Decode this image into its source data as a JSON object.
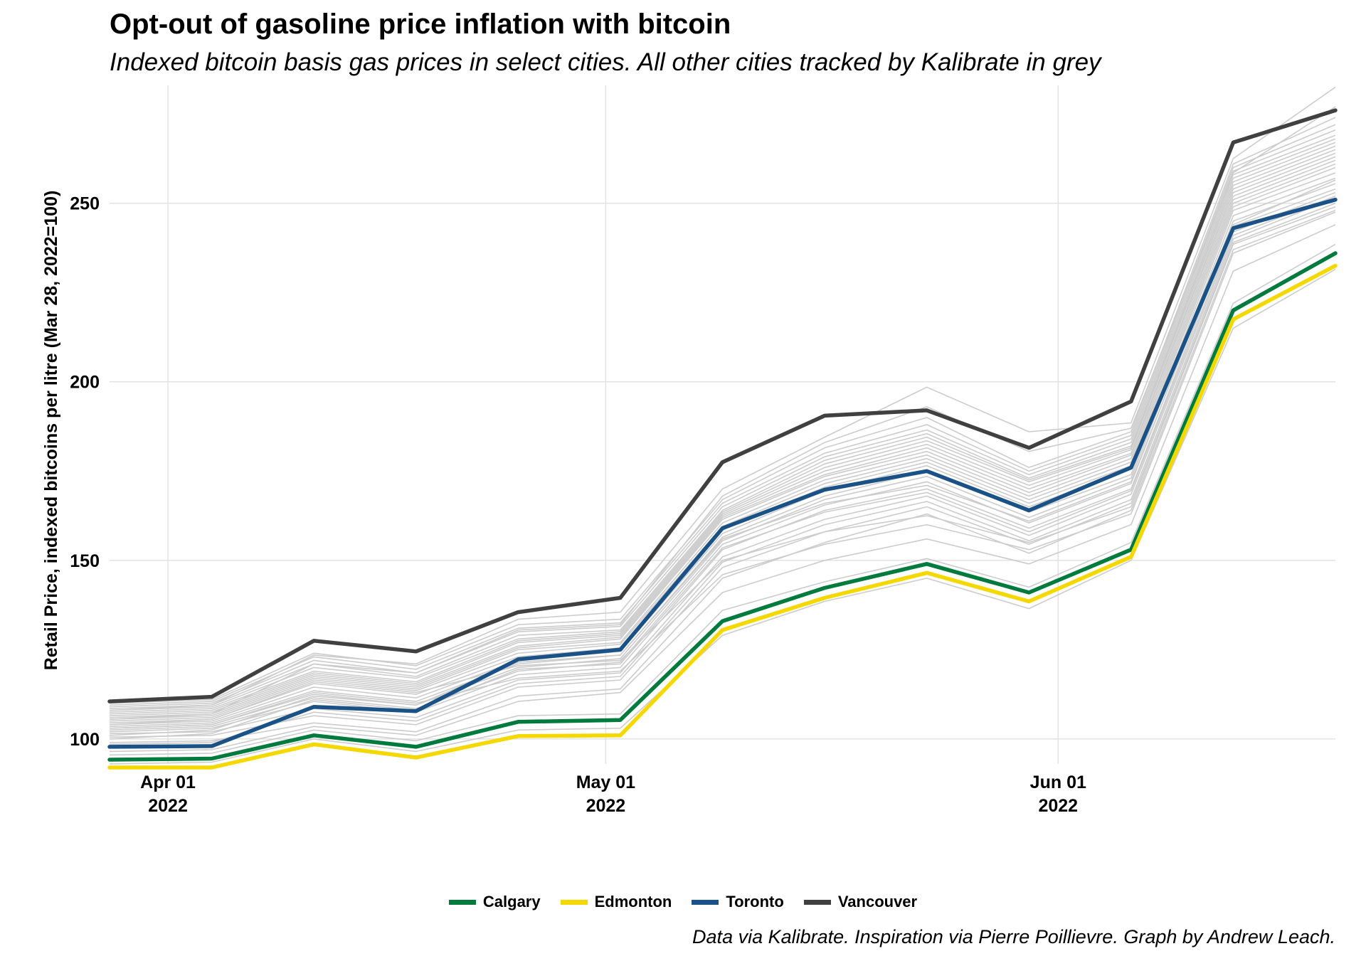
{
  "chart_data": {
    "type": "line",
    "title": "Opt-out of gasoline price inflation with bitcoin",
    "subtitle": "Indexed bitcoin basis gas prices in select cities. All other cities tracked by Kalibrate in grey",
    "ylabel": "Retail Price, indexed bitcoins per litre (Mar 28, 2022=100)",
    "xlabel": "",
    "caption": "Data via Kalibrate. Inspiration via Pierre Poillievre. Graph by Andrew Leach.",
    "x_dates": [
      "2022-03-28",
      "2022-04-04",
      "2022-04-11",
      "2022-04-18",
      "2022-04-25",
      "2022-05-02",
      "2022-05-09",
      "2022-05-16",
      "2022-05-23",
      "2022-05-30",
      "2022-06-06",
      "2022-06-13",
      "2022-06-20"
    ],
    "x_ticks": [
      {
        "date": "2022-04-01",
        "line1": "Apr 01",
        "line2": "2022"
      },
      {
        "date": "2022-05-01",
        "line1": "May 01",
        "line2": "2022"
      },
      {
        "date": "2022-06-01",
        "line1": "Jun 01",
        "line2": "2022"
      }
    ],
    "y_ticks": [
      100,
      150,
      200,
      250
    ],
    "ylim": [
      93,
      283
    ],
    "grid": true,
    "legend_position": "bottom",
    "series": [
      {
        "name": "Calgary",
        "color": "#007a3d",
        "values": [
          94.2,
          94.5,
          101.0,
          97.8,
          104.8,
          105.3,
          133.0,
          142.3,
          149.0,
          141.0,
          153.0,
          220.0,
          236.0
        ]
      },
      {
        "name": "Edmonton",
        "color": "#f5d800",
        "values": [
          92.0,
          92.0,
          98.5,
          94.8,
          100.8,
          101.0,
          130.5,
          139.5,
          146.5,
          138.5,
          151.0,
          217.5,
          232.5
        ]
      },
      {
        "name": "Toronto",
        "color": "#1a5287",
        "values": [
          97.8,
          98.0,
          109.0,
          107.8,
          122.3,
          125.0,
          159.0,
          169.8,
          175.0,
          164.0,
          176.0,
          243.0,
          251.0
        ]
      },
      {
        "name": "Vancouver",
        "color": "#404040",
        "values": [
          110.5,
          111.8,
          127.5,
          124.5,
          135.5,
          139.5,
          177.5,
          190.5,
          192.0,
          181.5,
          194.5,
          267.0,
          276.0
        ]
      }
    ],
    "background_series_color": "#cccccc",
    "background_series": [
      [
        99.0,
        99.5,
        104.5,
        102.0,
        112.0,
        114.0,
        145.0,
        155.0,
        163.0,
        152.0,
        164.0,
        237.0,
        248.0
      ],
      [
        100.5,
        101.0,
        106.5,
        104.0,
        114.5,
        116.5,
        148.0,
        158.0,
        165.0,
        154.5,
        166.0,
        239.0,
        250.0
      ],
      [
        101.5,
        102.0,
        108.5,
        106.0,
        116.5,
        118.5,
        151.0,
        161.5,
        168.0,
        157.0,
        168.5,
        241.0,
        252.0
      ],
      [
        102.0,
        103.0,
        110.5,
        107.5,
        118.0,
        120.0,
        153.0,
        164.0,
        170.0,
        159.0,
        170.0,
        243.5,
        254.0
      ],
      [
        102.5,
        103.5,
        111.5,
        108.5,
        119.0,
        121.5,
        154.5,
        165.5,
        172.0,
        160.5,
        171.5,
        245.0,
        255.5
      ],
      [
        103.0,
        104.0,
        112.5,
        109.5,
        120.0,
        122.5,
        155.5,
        167.0,
        173.5,
        162.0,
        173.0,
        246.5,
        257.0
      ],
      [
        103.5,
        104.5,
        113.5,
        110.5,
        121.0,
        123.5,
        156.5,
        168.0,
        175.0,
        163.5,
        174.0,
        248.0,
        258.5
      ],
      [
        104.0,
        105.0,
        114.5,
        111.5,
        122.0,
        124.5,
        157.5,
        169.5,
        176.5,
        165.0,
        175.5,
        249.0,
        260.0
      ],
      [
        104.5,
        105.5,
        115.5,
        112.5,
        123.0,
        125.5,
        158.5,
        170.5,
        177.5,
        166.0,
        176.5,
        250.0,
        261.0
      ],
      [
        105.0,
        106.0,
        116.5,
        113.5,
        124.0,
        126.5,
        159.5,
        171.5,
        178.5,
        167.0,
        177.5,
        251.0,
        262.0
      ],
      [
        105.5,
        106.5,
        117.0,
        114.0,
        125.0,
        127.0,
        160.5,
        172.5,
        179.5,
        168.0,
        178.5,
        252.0,
        263.0
      ],
      [
        106.0,
        107.0,
        117.5,
        114.5,
        125.5,
        128.0,
        161.5,
        173.5,
        180.5,
        169.0,
        179.5,
        253.0,
        264.0
      ],
      [
        106.5,
        107.5,
        118.0,
        115.0,
        126.0,
        128.5,
        162.0,
        174.0,
        181.5,
        170.0,
        180.0,
        254.0,
        265.0
      ],
      [
        107.0,
        108.0,
        118.5,
        115.5,
        127.0,
        129.0,
        162.5,
        175.0,
        182.5,
        171.0,
        181.0,
        255.0,
        266.0
      ],
      [
        107.5,
        108.5,
        119.0,
        116.0,
        127.5,
        129.5,
        163.0,
        176.0,
        183.5,
        172.0,
        181.5,
        256.0,
        267.0
      ],
      [
        108.0,
        109.0,
        120.0,
        117.0,
        128.0,
        130.0,
        163.5,
        177.0,
        184.5,
        172.5,
        182.0,
        257.0,
        268.0
      ],
      [
        108.5,
        109.5,
        121.0,
        117.5,
        129.0,
        130.5,
        164.0,
        178.0,
        185.5,
        173.0,
        183.0,
        258.0,
        269.0
      ],
      [
        109.0,
        110.0,
        122.0,
        118.5,
        130.0,
        131.5,
        165.0,
        179.0,
        186.5,
        174.0,
        184.0,
        259.0,
        270.5
      ],
      [
        109.5,
        110.5,
        123.0,
        119.5,
        131.0,
        132.5,
        166.0,
        180.0,
        188.0,
        175.0,
        185.0,
        260.0,
        272.0
      ],
      [
        110.0,
        111.0,
        124.0,
        120.5,
        132.0,
        133.5,
        167.0,
        181.5,
        190.0,
        176.0,
        186.0,
        261.0,
        274.0
      ],
      [
        104.0,
        105.5,
        116.0,
        113.0,
        120.5,
        122.0,
        150.0,
        158.0,
        162.5,
        155.0,
        165.0,
        238.5,
        249.0
      ],
      [
        103.0,
        104.0,
        113.0,
        110.0,
        117.0,
        119.0,
        146.0,
        154.5,
        160.0,
        153.0,
        163.0,
        236.0,
        247.5
      ],
      [
        95.5,
        96.0,
        102.5,
        99.5,
        106.5,
        107.0,
        136.0,
        144.0,
        150.5,
        142.5,
        155.0,
        222.0,
        238.5
      ],
      [
        93.0,
        93.5,
        100.0,
        96.5,
        102.5,
        103.0,
        129.0,
        138.5,
        145.0,
        136.5,
        150.0,
        215.0,
        231.5
      ],
      [
        96.5,
        97.0,
        103.5,
        101.0,
        110.5,
        113.0,
        141.0,
        150.0,
        156.0,
        149.0,
        160.0,
        231.0,
        244.0
      ],
      [
        108.0,
        109.5,
        123.5,
        121.0,
        133.5,
        135.5,
        170.0,
        184.5,
        198.5,
        186.0,
        188.5,
        262.5,
        282.5
      ],
      [
        105.5,
        107.0,
        121.0,
        118.5,
        130.5,
        132.0,
        168.0,
        183.0,
        193.0,
        180.5,
        187.0,
        258.5,
        277.0
      ],
      [
        101.0,
        102.5,
        112.0,
        109.5,
        121.5,
        123.5,
        156.0,
        166.0,
        171.0,
        161.0,
        172.0,
        244.0,
        256.5
      ],
      [
        98.5,
        99.0,
        107.5,
        105.0,
        115.5,
        117.5,
        149.5,
        160.0,
        166.5,
        155.5,
        167.0,
        240.0,
        251.5
      ],
      [
        100.0,
        101.5,
        111.0,
        108.0,
        119.5,
        121.0,
        153.5,
        163.5,
        169.0,
        158.0,
        169.5,
        242.0,
        253.0
      ]
    ]
  }
}
